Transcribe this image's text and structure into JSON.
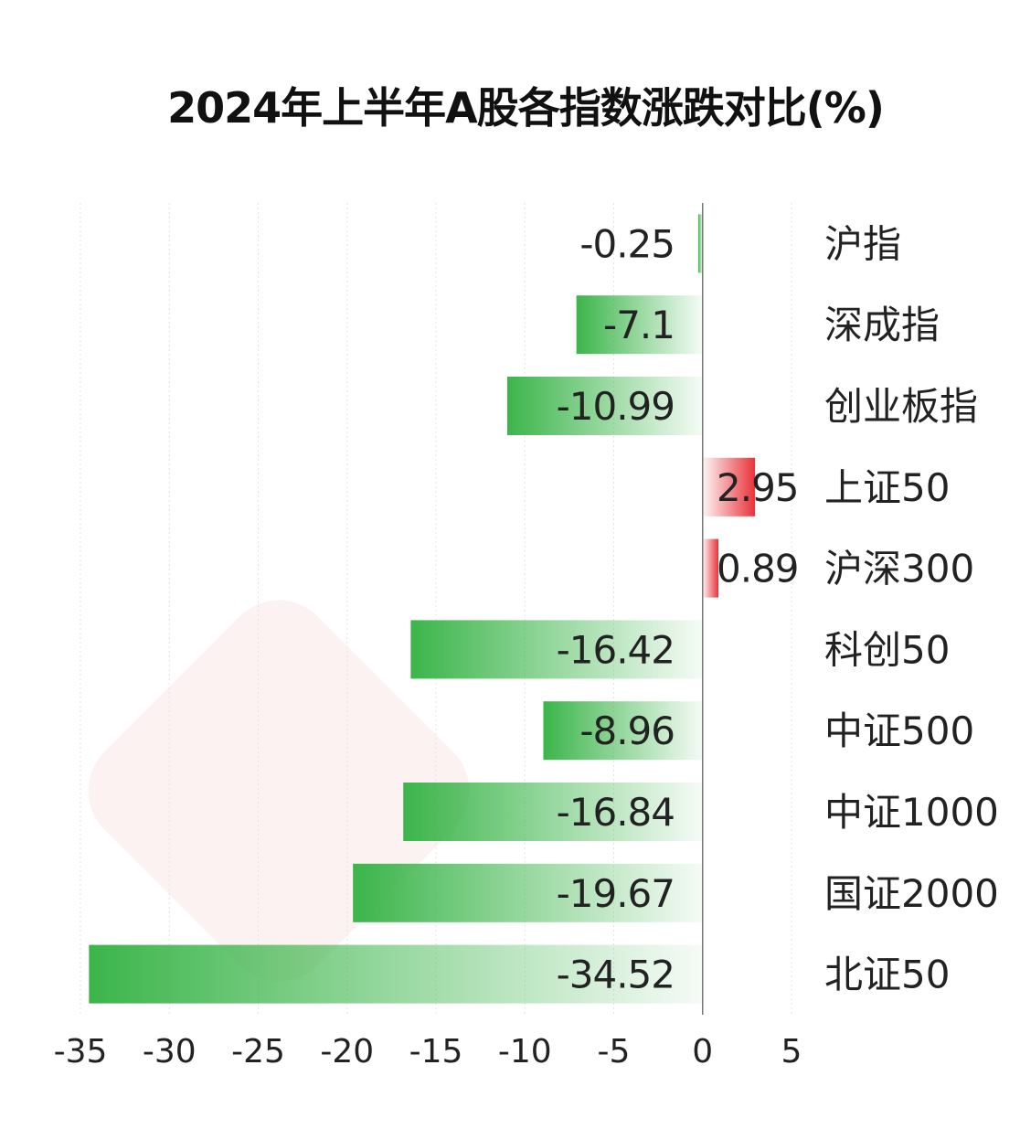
{
  "chart_data": {
    "type": "bar",
    "orientation": "horizontal",
    "title": "2024年上半年A股各指数涨跌对比(%)",
    "categories": [
      "沪指",
      "深成指",
      "创业板指",
      "上证50",
      "沪深300",
      "科创50",
      "中证500",
      "中证1000",
      "国证2000",
      "北证50"
    ],
    "values": [
      -0.25,
      -7.1,
      -10.99,
      2.95,
      0.89,
      -16.42,
      -8.96,
      -16.84,
      -19.67,
      -34.52
    ],
    "value_labels": [
      "-0.25",
      "-7.1",
      "-10.99",
      "2.95",
      "0.89",
      "-16.42",
      "-8.96",
      "-16.84",
      "-19.67",
      "-34.52"
    ],
    "xlim": [
      -35,
      5
    ],
    "xticks": [
      -35,
      -30,
      -25,
      -20,
      -15,
      -10,
      -5,
      0,
      5
    ],
    "xtick_labels": [
      "-35",
      "-30",
      "-25",
      "-20",
      "-15",
      "-10",
      "-5",
      "0",
      "5"
    ],
    "grid": true,
    "colors": {
      "negative": "#3bb54a",
      "positive": "#e8333a"
    }
  }
}
